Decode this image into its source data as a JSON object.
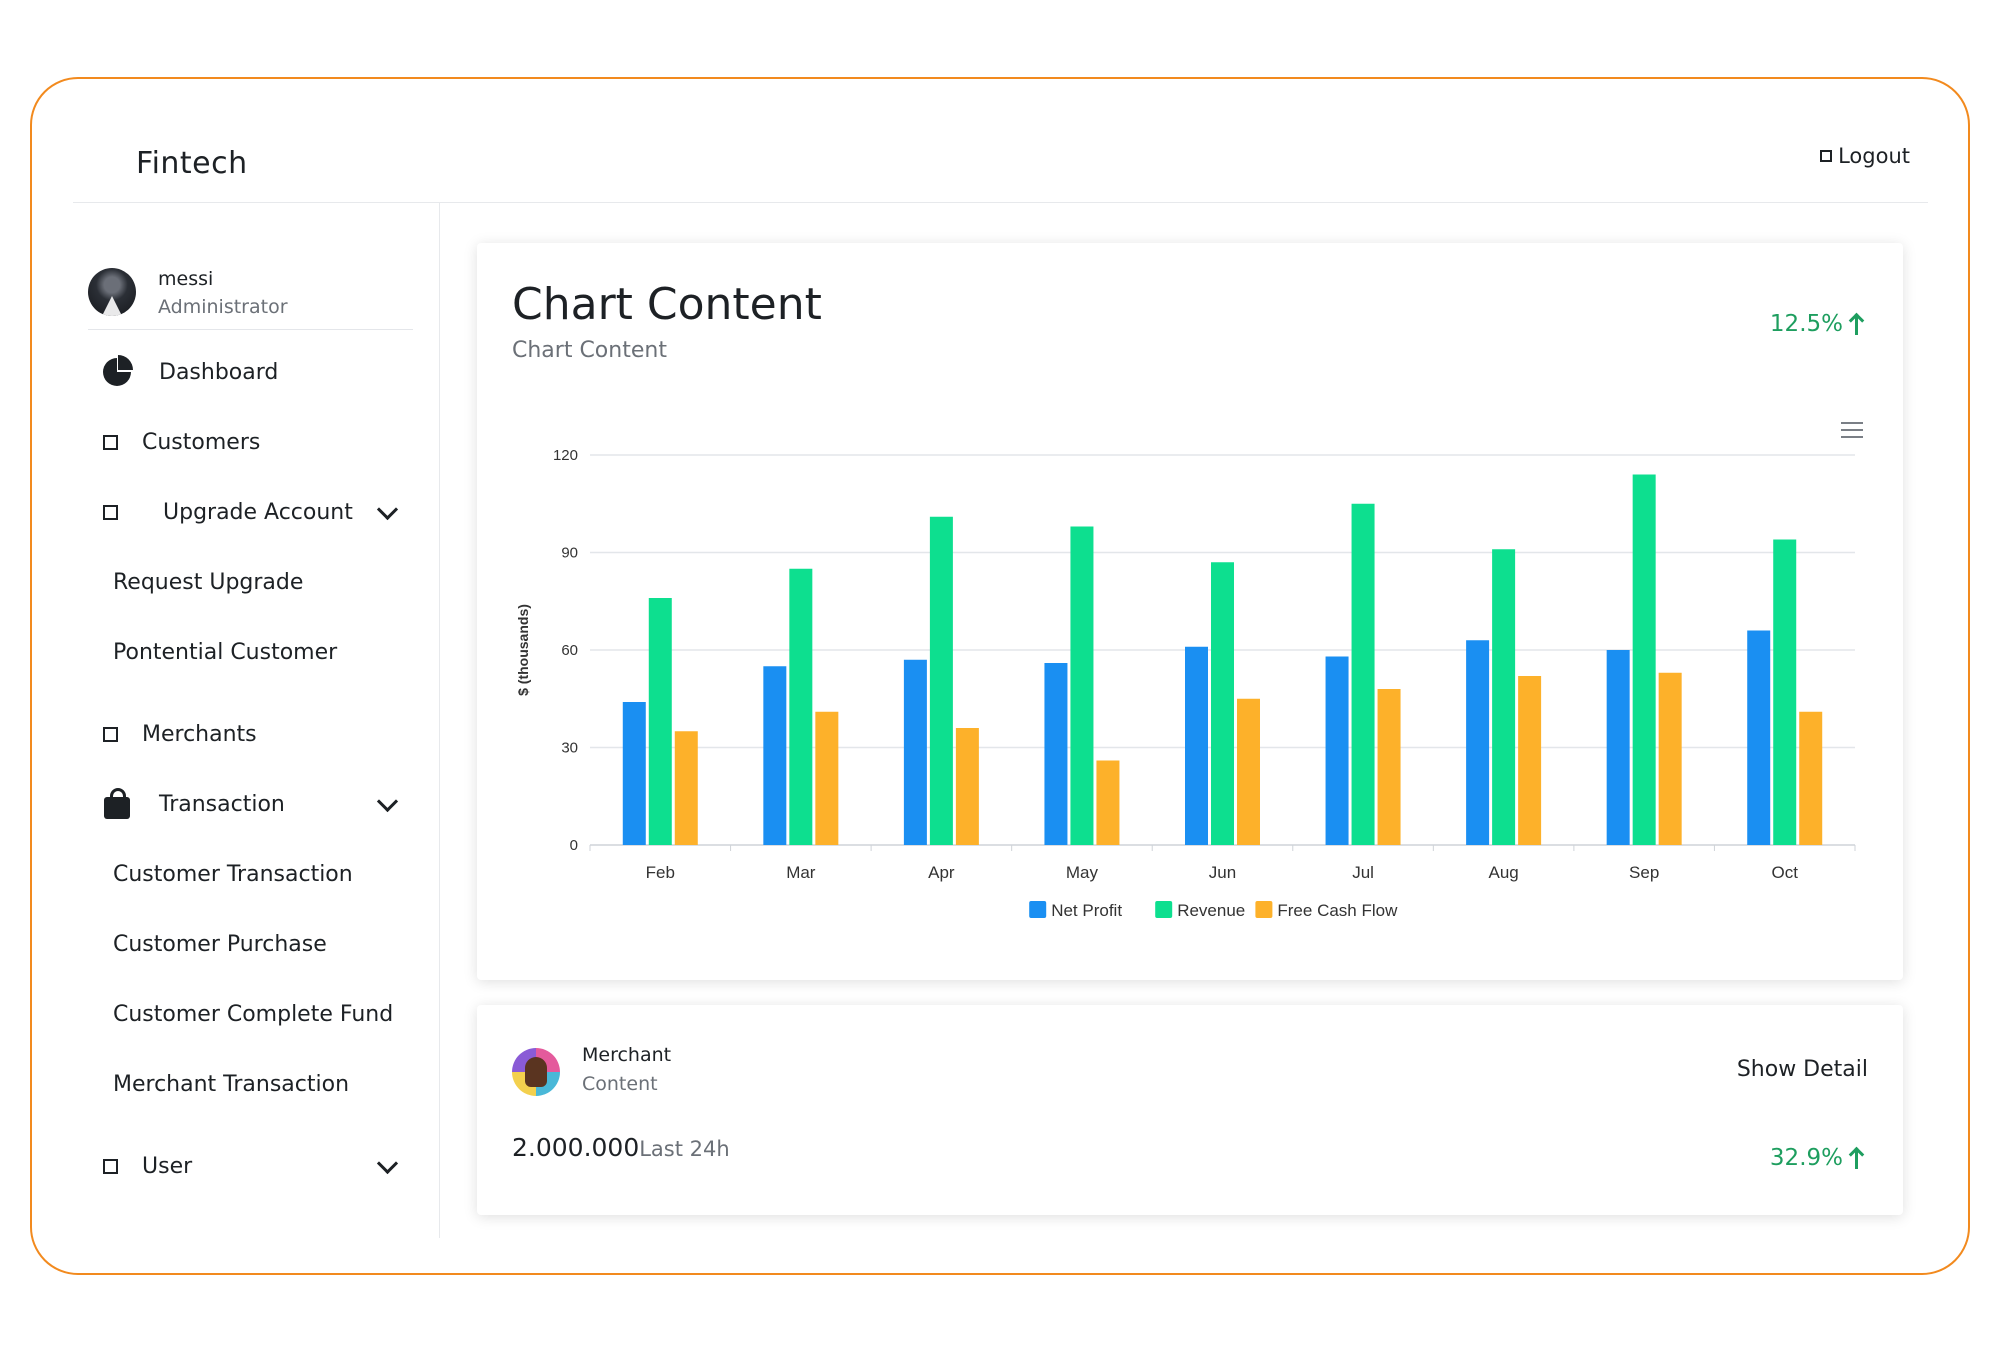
{
  "header": {
    "brand": "Fintech",
    "logout_label": "Logout"
  },
  "user": {
    "name": "messi",
    "role": "Administrator"
  },
  "sidebar": {
    "items": [
      {
        "label": "Dashboard"
      },
      {
        "label": "Customers"
      },
      {
        "label": "Upgrade Account"
      },
      {
        "label": "Request Upgrade"
      },
      {
        "label": "Pontential Customer"
      },
      {
        "label": "Merchants"
      },
      {
        "label": "Transaction"
      },
      {
        "label": "Customer Transaction"
      },
      {
        "label": "Customer Purchase"
      },
      {
        "label": "Customer Complete Fund"
      },
      {
        "label": "Merchant Transaction"
      },
      {
        "label": "User"
      }
    ]
  },
  "chart_card": {
    "title": "Chart Content",
    "subtitle": "Chart Content",
    "change": "12.5%"
  },
  "merchant_card": {
    "title": "Merchant",
    "subtitle": "Content",
    "action": "Show Detail",
    "amount": "2.000.000",
    "amount_period": "Last 24h",
    "change": "32.9%"
  },
  "colors": {
    "accent": "#1e9e5f",
    "frame": "#f28a1e"
  },
  "chart_data": {
    "type": "bar",
    "categories": [
      "Feb",
      "Mar",
      "Apr",
      "May",
      "Jun",
      "Jul",
      "Aug",
      "Sep",
      "Oct"
    ],
    "series": [
      {
        "name": "Net Profit",
        "color": "#1a8ff2",
        "values": [
          44,
          55,
          57,
          56,
          61,
          58,
          63,
          60,
          66
        ]
      },
      {
        "name": "Revenue",
        "color": "#0ddf8f",
        "values": [
          76,
          85,
          101,
          98,
          87,
          105,
          91,
          114,
          94
        ]
      },
      {
        "name": "Free Cash Flow",
        "color": "#fdb12a",
        "values": [
          35,
          41,
          36,
          26,
          45,
          48,
          52,
          53,
          41
        ]
      }
    ],
    "yticks": [
      "0",
      "30",
      "60",
      "90",
      "120"
    ],
    "ylim": [
      0,
      120
    ],
    "ylabel": "$ (thousands)",
    "grid": true,
    "legend": "bottom"
  }
}
